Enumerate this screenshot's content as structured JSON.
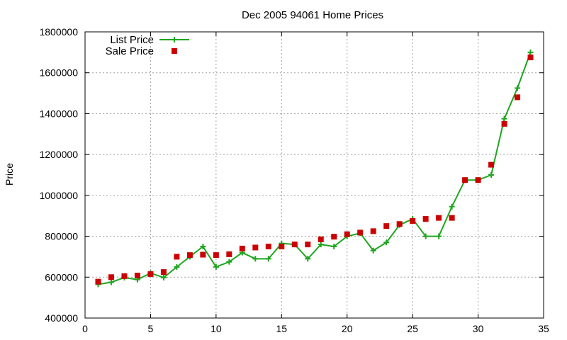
{
  "chart_data": {
    "type": "line",
    "title": "Dec 2005 94061 Home Prices",
    "xlabel": "",
    "ylabel": "Price",
    "xlim": [
      0,
      35
    ],
    "ylim": [
      400000,
      1800000
    ],
    "x_ticks": [
      0,
      5,
      10,
      15,
      20,
      25,
      30,
      35
    ],
    "y_ticks": [
      400000,
      600000,
      800000,
      1000000,
      1200000,
      1400000,
      1600000,
      1800000
    ],
    "grid": true,
    "legend_position": "top-left",
    "x": [
      1,
      2,
      3,
      4,
      5,
      6,
      7,
      8,
      9,
      10,
      11,
      12,
      13,
      14,
      15,
      16,
      17,
      18,
      19,
      20,
      21,
      22,
      23,
      24,
      25,
      26,
      27,
      28,
      29,
      30,
      31,
      32,
      33,
      34
    ],
    "series": [
      {
        "name": "List Price",
        "style": "line-points",
        "marker": "plus",
        "color": "#1fa61f",
        "values": [
          565000,
          575000,
          598000,
          588000,
          620000,
          598000,
          650000,
          700000,
          750000,
          650000,
          675000,
          720000,
          690000,
          690000,
          765000,
          760000,
          690000,
          760000,
          750000,
          800000,
          815000,
          730000,
          770000,
          855000,
          885000,
          800000,
          800000,
          945000,
          1075000,
          1075000,
          1100000,
          1375000,
          1525000,
          1700000
        ]
      },
      {
        "name": "Sale Price",
        "style": "points",
        "marker": "square",
        "color": "#cc0000",
        "values": [
          578000,
          600000,
          605000,
          608000,
          615000,
          625000,
          700000,
          708000,
          710000,
          708000,
          712000,
          740000,
          745000,
          750000,
          750000,
          760000,
          760000,
          785000,
          798000,
          810000,
          818000,
          825000,
          850000,
          860000,
          875000,
          885000,
          890000,
          890000,
          1075000,
          1075000,
          1150000,
          1350000,
          1480000,
          1675000
        ]
      }
    ]
  }
}
